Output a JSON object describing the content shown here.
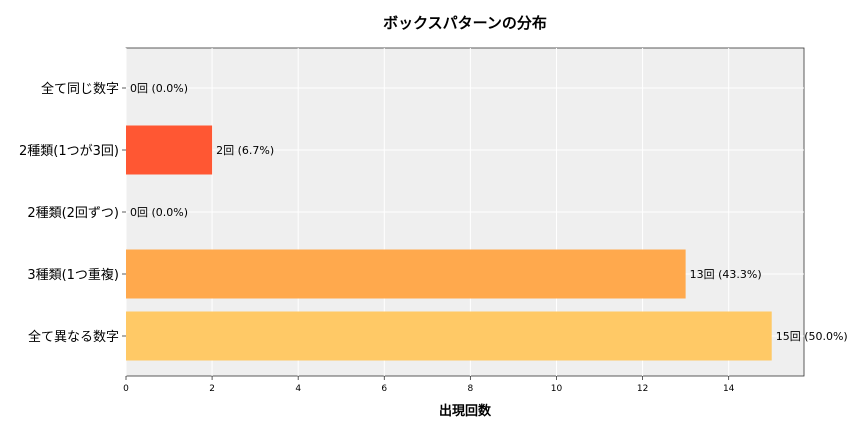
{
  "chart_data": {
    "type": "bar",
    "orientation": "horizontal",
    "title": "ボックスパターンの分布",
    "xlabel": "出現回数",
    "ylabel": "",
    "categories": [
      "全て同じ数字",
      "2種類(1つが3回)",
      "2種類(2回ずつ)",
      "3種類(1つ重複)",
      "全て異なる数字"
    ],
    "values": [
      0,
      2,
      0,
      13,
      15
    ],
    "data_labels": [
      "0回 (0.0%)",
      "2回 (6.7%)",
      "0回 (0.0%)",
      "13回 (43.3%)",
      "15回 (50.0%)"
    ],
    "colors": [
      "#ff5733",
      "#ff5733",
      "#ff8c42",
      "#ffa94d",
      "#ffc966"
    ],
    "xlim": [
      0,
      15.75
    ],
    "xticks": [
      0,
      2,
      4,
      6,
      8,
      10,
      12,
      14
    ],
    "grid": true,
    "background": "#efefef"
  }
}
